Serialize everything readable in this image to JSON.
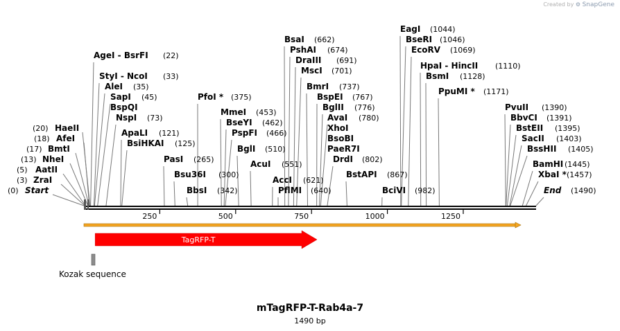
{
  "credit": {
    "prefix": "Created by",
    "brand": "SnapGene"
  },
  "map": {
    "title": "mTagRFP-T-Rab4a-7",
    "length_label": "1490 bp",
    "length_bp": 1490,
    "backbone_color": "#000000",
    "insert_color": "#f5a623",
    "axis_ticks": [
      250,
      500,
      750,
      1000,
      1250
    ],
    "features": [
      {
        "name": "TagRFP-T",
        "kind": "arrow",
        "start": 37,
        "end": 768,
        "color": "#ff0000"
      },
      {
        "name": "Kozak sequence",
        "kind": "box",
        "start": 25,
        "end": 36,
        "color": "#8c8c8c"
      }
    ]
  },
  "sites": [
    {
      "label": "Start",
      "num": "(0)",
      "bp": 0,
      "italic": true
    },
    {
      "label": "ZraI",
      "num": "(3)",
      "bp": 3
    },
    {
      "label": "AatII",
      "num": "(5)",
      "bp": 5
    },
    {
      "label": "NheI",
      "num": "(13)",
      "bp": 13
    },
    {
      "label": "BmtI",
      "num": "(17)",
      "bp": 17
    },
    {
      "label": "AfeI",
      "num": "(18)",
      "bp": 18
    },
    {
      "label": "HaeII",
      "num": "(20)",
      "bp": 20
    },
    {
      "label": "AgeI  - BsrFI",
      "num": "(22)",
      "bp": 22
    },
    {
      "label": "StyI  - NcoI",
      "num": "(33)",
      "bp": 33
    },
    {
      "label": "AleI",
      "num": "(35)",
      "bp": 35
    },
    {
      "label": "SapI",
      "num": "(45)",
      "bp": 45
    },
    {
      "label": "BspQI",
      "num": "",
      "bp": 45
    },
    {
      "label": "NspI",
      "num": "(73)",
      "bp": 73
    },
    {
      "label": "ApaLI",
      "num": "(121)",
      "bp": 121
    },
    {
      "label": "BsiHKAI",
      "num": "(125)",
      "bp": 125
    },
    {
      "label": "PasI",
      "num": "(265)",
      "bp": 265
    },
    {
      "label": "Bsu36I",
      "num": "(300)",
      "bp": 300
    },
    {
      "label": "BbsI",
      "num": "(342)",
      "bp": 342
    },
    {
      "label": "PfoI *",
      "num": "(375)",
      "bp": 375
    },
    {
      "label": "MmeI",
      "num": "(453)",
      "bp": 453
    },
    {
      "label": "BseYI",
      "num": "(462)",
      "bp": 462
    },
    {
      "label": "PspFI",
      "num": "(466)",
      "bp": 466
    },
    {
      "label": "BglI",
      "num": "(510)",
      "bp": 510
    },
    {
      "label": "AcuI",
      "num": "(551)",
      "bp": 551
    },
    {
      "label": "AccI",
      "num": "(621)",
      "bp": 621
    },
    {
      "label": "PflMI",
      "num": "(640)",
      "bp": 640
    },
    {
      "label": "BsaI",
      "num": "(662)",
      "bp": 662
    },
    {
      "label": "PshAI",
      "num": "(674)",
      "bp": 674
    },
    {
      "label": "DraIII",
      "num": "(691)",
      "bp": 691
    },
    {
      "label": "MscI",
      "num": "(701)",
      "bp": 701
    },
    {
      "label": "BmrI",
      "num": "(737)",
      "bp": 737
    },
    {
      "label": "BspEI",
      "num": "(767)",
      "bp": 767
    },
    {
      "label": "BglII",
      "num": "(776)",
      "bp": 776
    },
    {
      "label": "AvaI",
      "num": "(780)",
      "bp": 780
    },
    {
      "label": "XhoI",
      "num": "",
      "bp": 780
    },
    {
      "label": "BsoBI",
      "num": "",
      "bp": 780
    },
    {
      "label": "PaeR7I",
      "num": "",
      "bp": 780
    },
    {
      "label": "DrdI",
      "num": "(802)",
      "bp": 802
    },
    {
      "label": "BstAPI",
      "num": "(867)",
      "bp": 867
    },
    {
      "label": "BciVI",
      "num": "(982)",
      "bp": 982
    },
    {
      "label": "EagI",
      "num": "(1044)",
      "bp": 1044
    },
    {
      "label": "BseRI",
      "num": "(1046)",
      "bp": 1046
    },
    {
      "label": "EcoRV",
      "num": "(1069)",
      "bp": 1069
    },
    {
      "label": "HpaI  - HincII",
      "num": "(1110)",
      "bp": 1110
    },
    {
      "label": "BsmI",
      "num": "(1128)",
      "bp": 1128
    },
    {
      "label": "PpuMI *",
      "num": "(1171)",
      "bp": 1171
    },
    {
      "label": "PvuII",
      "num": "(1390)",
      "bp": 1390
    },
    {
      "label": "BbvCI",
      "num": "(1391)",
      "bp": 1391
    },
    {
      "label": "BstEII",
      "num": "(1395)",
      "bp": 1395
    },
    {
      "label": "SacII",
      "num": "(1403)",
      "bp": 1403
    },
    {
      "label": "BssHII",
      "num": "(1405)",
      "bp": 1405
    },
    {
      "label": "BamHI",
      "num": "(1445)",
      "bp": 1445
    },
    {
      "label": "XbaI *",
      "num": "(1457)",
      "bp": 1457
    },
    {
      "label": "End",
      "num": "(1490)",
      "bp": 1490,
      "italic": true
    }
  ]
}
